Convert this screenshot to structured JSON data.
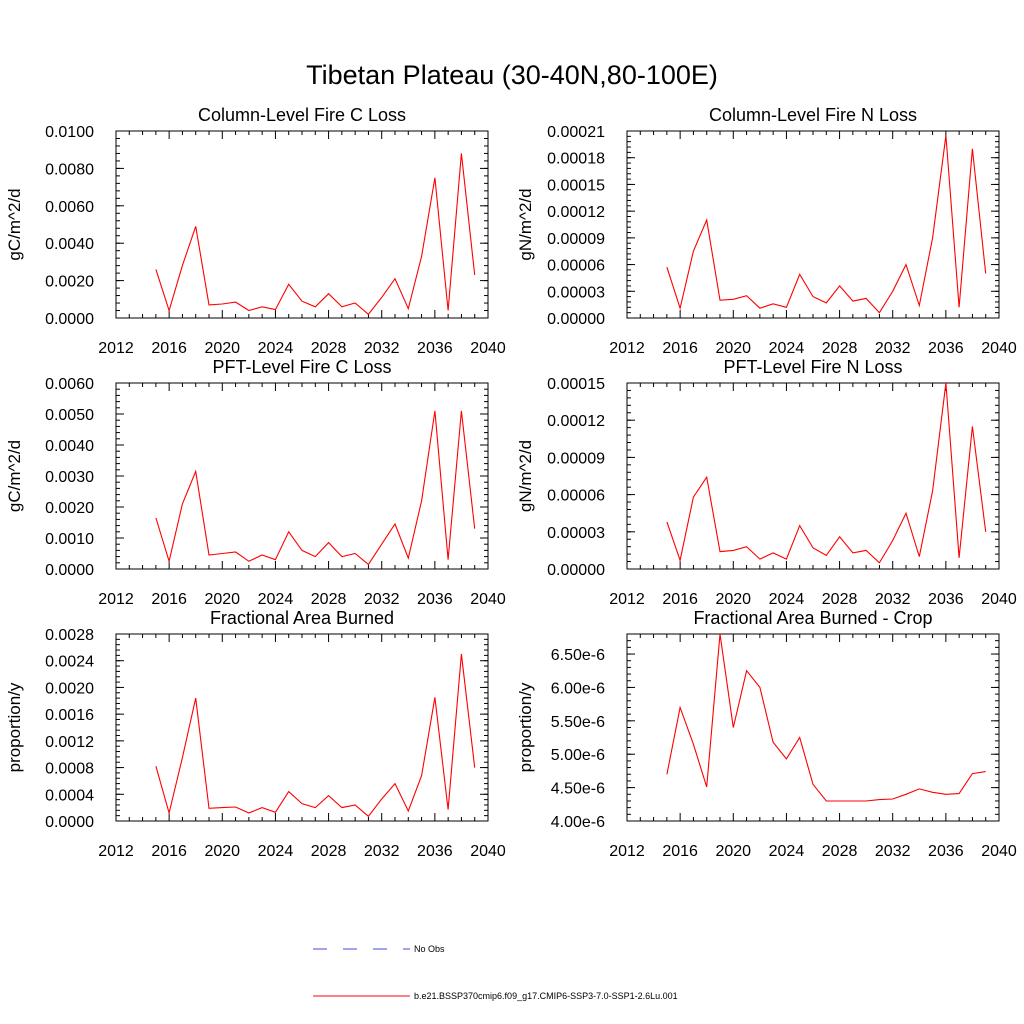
{
  "figure": {
    "title": "Tibetan Plateau (30-40N,80-100E)",
    "line_color": "#ff0000",
    "obs_color": "#3f4fd0"
  },
  "legend": {
    "entries": [
      {
        "label": "No Obs",
        "style": "dashed",
        "color": "#3f4fd0"
      },
      {
        "label": "b.e21.BSSP370cmip6.f09_g17.CMIP6-SSP3-7.0-SSP1-2.6Lu.001",
        "style": "solid",
        "color": "#ff0000"
      }
    ]
  },
  "chart_data": [
    {
      "type": "line",
      "title": "Column-Level Fire C Loss",
      "ylabel": "gC/m^2/d",
      "xlabel": "",
      "xlim": [
        2012,
        2040
      ],
      "xticks": [
        "2012",
        "2016",
        "2020",
        "2024",
        "2028",
        "2032",
        "2036",
        "2040"
      ],
      "ylim": [
        0,
        0.01
      ],
      "yticks": [
        "0.0000",
        "0.0020",
        "0.0040",
        "0.0060",
        "0.0080",
        "0.0100"
      ],
      "x": [
        2015,
        2016,
        2017,
        2018,
        2019,
        2020,
        2021,
        2022,
        2023,
        2024,
        2025,
        2026,
        2027,
        2028,
        2029,
        2030,
        2031,
        2032,
        2033,
        2034,
        2035,
        2036,
        2037,
        2038,
        2039
      ],
      "series": [
        {
          "values": [
            0.0026,
            0.0004,
            0.0028,
            0.0049,
            0.0007,
            0.00075,
            0.00085,
            0.0004,
            0.0006,
            0.00045,
            0.0018,
            0.0009,
            0.0006,
            0.0013,
            0.0006,
            0.0008,
            0.0002,
            0.0011,
            0.0021,
            0.0005,
            0.0033,
            0.0075,
            0.0004,
            0.0088,
            0.0023
          ]
        }
      ]
    },
    {
      "type": "line",
      "title": "Column-Level Fire N Loss",
      "ylabel": "gN/m^2/d",
      "xlabel": "",
      "xlim": [
        2012,
        2040
      ],
      "xticks": [
        "2012",
        "2016",
        "2020",
        "2024",
        "2028",
        "2032",
        "2036",
        "2040"
      ],
      "ylim": [
        0,
        0.00021
      ],
      "yticks": [
        "0.00000",
        "0.00003",
        "0.00006",
        "0.00009",
        "0.00012",
        "0.00015",
        "0.00018",
        "0.00021"
      ],
      "x": [
        2015,
        2016,
        2017,
        2018,
        2019,
        2020,
        2021,
        2022,
        2023,
        2024,
        2025,
        2026,
        2027,
        2028,
        2029,
        2030,
        2031,
        2032,
        2033,
        2034,
        2035,
        2036,
        2037,
        2038,
        2039
      ],
      "series": [
        {
          "values": [
            5.7e-05,
            1.1e-05,
            7.5e-05,
            0.00011,
            2e-05,
            2.1e-05,
            2.5e-05,
            1.1e-05,
            1.6e-05,
            1.2e-05,
            4.9e-05,
            2.4e-05,
            1.7e-05,
            3.6e-05,
            1.9e-05,
            2.2e-05,
            6e-06,
            3e-05,
            6e-05,
            1.4e-05,
            9e-05,
            0.000205,
            1.2e-05,
            0.00019,
            5e-05
          ]
        }
      ]
    },
    {
      "type": "line",
      "title": "PFT-Level Fire C Loss",
      "ylabel": "gC/m^2/d",
      "xlabel": "",
      "xlim": [
        2012,
        2040
      ],
      "xticks": [
        "2012",
        "2016",
        "2020",
        "2024",
        "2028",
        "2032",
        "2036",
        "2040"
      ],
      "ylim": [
        0,
        0.006
      ],
      "yticks": [
        "0.0000",
        "0.0010",
        "0.0020",
        "0.0030",
        "0.0040",
        "0.0050",
        "0.0060"
      ],
      "x": [
        2015,
        2016,
        2017,
        2018,
        2019,
        2020,
        2021,
        2022,
        2023,
        2024,
        2025,
        2026,
        2027,
        2028,
        2029,
        2030,
        2031,
        2032,
        2033,
        2034,
        2035,
        2036,
        2037,
        2038,
        2039
      ],
      "series": [
        {
          "values": [
            0.00165,
            0.00025,
            0.0021,
            0.00315,
            0.00045,
            0.0005,
            0.00055,
            0.00025,
            0.00045,
            0.0003,
            0.0012,
            0.0006,
            0.0004,
            0.00085,
            0.0004,
            0.0005,
            0.00015,
            0.0008,
            0.00145,
            0.00035,
            0.0022,
            0.0051,
            0.0003,
            0.0051,
            0.0013
          ]
        }
      ]
    },
    {
      "type": "line",
      "title": "PFT-Level Fire N Loss",
      "ylabel": "gN/m^2/d",
      "xlabel": "",
      "xlim": [
        2012,
        2040
      ],
      "xticks": [
        "2012",
        "2016",
        "2020",
        "2024",
        "2028",
        "2032",
        "2036",
        "2040"
      ],
      "ylim": [
        0,
        0.00015
      ],
      "yticks": [
        "0.00000",
        "0.00003",
        "0.00006",
        "0.00009",
        "0.00012",
        "0.00015"
      ],
      "x": [
        2015,
        2016,
        2017,
        2018,
        2019,
        2020,
        2021,
        2022,
        2023,
        2024,
        2025,
        2026,
        2027,
        2028,
        2029,
        2030,
        2031,
        2032,
        2033,
        2034,
        2035,
        2036,
        2037,
        2038,
        2039
      ],
      "series": [
        {
          "values": [
            3.8e-05,
            7e-06,
            5.8e-05,
            7.4e-05,
            1.4e-05,
            1.5e-05,
            1.8e-05,
            8e-06,
            1.3e-05,
            8e-06,
            3.5e-05,
            1.7e-05,
            1.1e-05,
            2.6e-05,
            1.3e-05,
            1.5e-05,
            5e-06,
            2.3e-05,
            4.5e-05,
            1e-05,
            6.3e-05,
            0.00015,
            9e-06,
            0.000115,
            3e-05
          ]
        }
      ]
    },
    {
      "type": "line",
      "title": "Fractional Area Burned",
      "ylabel": "proportion/y",
      "xlabel": "",
      "xlim": [
        2012,
        2040
      ],
      "xticks": [
        "2012",
        "2016",
        "2020",
        "2024",
        "2028",
        "2032",
        "2036",
        "2040"
      ],
      "ylim": [
        0,
        0.0028
      ],
      "yticks": [
        "0.0000",
        "0.0004",
        "0.0008",
        "0.0012",
        "0.0016",
        "0.0020",
        "0.0024",
        "0.0028"
      ],
      "x": [
        2015,
        2016,
        2017,
        2018,
        2019,
        2020,
        2021,
        2022,
        2023,
        2024,
        2025,
        2026,
        2027,
        2028,
        2029,
        2030,
        2031,
        2032,
        2033,
        2034,
        2035,
        2036,
        2037,
        2038,
        2039
      ],
      "series": [
        {
          "values": [
            0.00082,
            0.00012,
            0.00095,
            0.00184,
            0.00019,
            0.0002,
            0.00021,
            0.00012,
            0.0002,
            0.00013,
            0.00044,
            0.00026,
            0.0002,
            0.00038,
            0.0002,
            0.00024,
            7e-05,
            0.00033,
            0.00056,
            0.00015,
            0.00068,
            0.00185,
            0.00017,
            0.0025,
            0.0008
          ]
        }
      ]
    },
    {
      "type": "line",
      "title": "Fractional Area Burned - Crop",
      "ylabel": "proportion/y",
      "xlabel": "",
      "xlim": [
        2012,
        2040
      ],
      "xticks": [
        "2012",
        "2016",
        "2020",
        "2024",
        "2028",
        "2032",
        "2036",
        "2040"
      ],
      "ylim": [
        4e-06,
        6.8e-06
      ],
      "yticks": [
        "4.00e-6",
        "4.50e-6",
        "5.00e-6",
        "5.50e-6",
        "6.00e-6",
        "6.50e-6"
      ],
      "ytick_values": [
        4e-06,
        4.5e-06,
        5e-06,
        5.5e-06,
        6e-06,
        6.5e-06
      ],
      "x": [
        2015,
        2016,
        2017,
        2018,
        2019,
        2020,
        2021,
        2022,
        2023,
        2024,
        2025,
        2026,
        2027,
        2028,
        2029,
        2030,
        2031,
        2032,
        2033,
        2034,
        2035,
        2036,
        2037,
        2038,
        2039
      ],
      "series": [
        {
          "values": [
            4.7e-06,
            5.7e-06,
            5.15e-06,
            4.51e-06,
            6.8e-06,
            5.4e-06,
            6.25e-06,
            6e-06,
            5.18e-06,
            4.93e-06,
            5.25e-06,
            4.55e-06,
            4.3e-06,
            4.3e-06,
            4.3e-06,
            4.3e-06,
            4.32e-06,
            4.33e-06,
            4.4e-06,
            4.48e-06,
            4.43e-06,
            4.4e-06,
            4.41e-06,
            4.71e-06,
            4.74e-06
          ]
        }
      ]
    }
  ]
}
